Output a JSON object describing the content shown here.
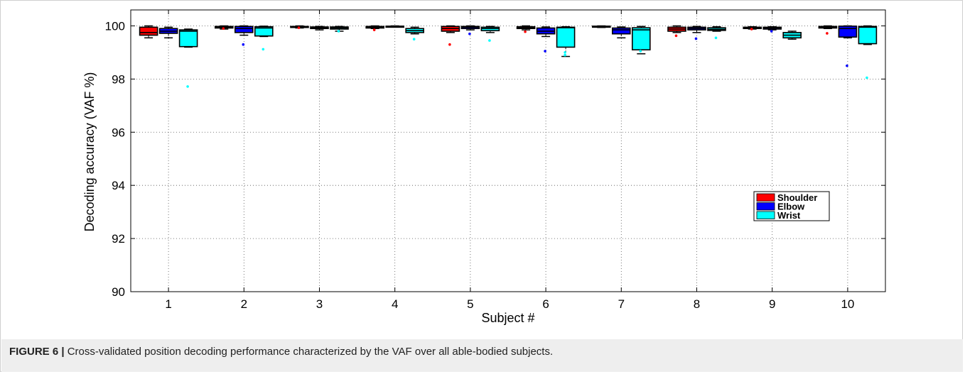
{
  "caption": {
    "label": "FIGURE 6 |",
    "text": " Cross-validated position decoding performance characterized by the VAF over all able-bodied subjects."
  },
  "chart_data": {
    "type": "box",
    "title": "",
    "xlabel": "Subject #",
    "ylabel": "Decoding accuracy (VAF %)",
    "ylim": [
      90,
      100.6
    ],
    "yticks": [
      90,
      92,
      94,
      96,
      98,
      100
    ],
    "categories": [
      "1",
      "2",
      "3",
      "4",
      "5",
      "6",
      "7",
      "8",
      "9",
      "10"
    ],
    "grid": true,
    "legend_position": "right",
    "series": [
      {
        "name": "Shoulder",
        "color": "#ff0000",
        "boxes": [
          {
            "min": 99.55,
            "q1": 99.65,
            "median": 99.75,
            "q3": 99.95,
            "max": 100.0,
            "outliers": []
          },
          {
            "min": 99.88,
            "q1": 99.92,
            "median": 99.95,
            "q3": 99.98,
            "max": 100.0,
            "outliers": [
              99.9
            ]
          },
          {
            "min": 99.92,
            "q1": 99.94,
            "median": 99.96,
            "q3": 99.98,
            "max": 100.0,
            "outliers": [
              99.93
            ]
          },
          {
            "min": 99.9,
            "q1": 99.92,
            "median": 99.95,
            "q3": 99.98,
            "max": 100.0,
            "outliers": [
              99.85
            ]
          },
          {
            "min": 99.75,
            "q1": 99.8,
            "median": 99.9,
            "q3": 99.98,
            "max": 100.0,
            "outliers": [
              99.3
            ]
          },
          {
            "min": 99.85,
            "q1": 99.9,
            "median": 99.93,
            "q3": 99.97,
            "max": 100.0,
            "outliers": [
              99.78
            ]
          },
          {
            "min": 99.94,
            "q1": 99.96,
            "median": 99.98,
            "q3": 99.99,
            "max": 100.0,
            "outliers": []
          },
          {
            "min": 99.75,
            "q1": 99.8,
            "median": 99.88,
            "q3": 99.95,
            "max": 100.0,
            "outliers": [
              99.63
            ]
          },
          {
            "min": 99.88,
            "q1": 99.9,
            "median": 99.93,
            "q3": 99.95,
            "max": 99.97,
            "outliers": [
              99.88
            ]
          },
          {
            "min": 99.9,
            "q1": 99.92,
            "median": 99.95,
            "q3": 99.98,
            "max": 100.0,
            "outliers": [
              99.72
            ]
          }
        ]
      },
      {
        "name": "Elbow",
        "color": "#0000ff",
        "boxes": [
          {
            "min": 99.55,
            "q1": 99.72,
            "median": 99.8,
            "q3": 99.9,
            "max": 99.95,
            "outliers": []
          },
          {
            "min": 99.65,
            "q1": 99.75,
            "median": 99.9,
            "q3": 99.98,
            "max": 100.0,
            "outliers": [
              99.3
            ]
          },
          {
            "min": 99.85,
            "q1": 99.9,
            "median": 99.93,
            "q3": 99.96,
            "max": 99.98,
            "outliers": []
          },
          {
            "min": 99.96,
            "q1": 99.97,
            "median": 99.98,
            "q3": 99.99,
            "max": 100.0,
            "outliers": []
          },
          {
            "min": 99.85,
            "q1": 99.9,
            "median": 99.95,
            "q3": 99.98,
            "max": 100.0,
            "outliers": [
              99.7
            ]
          },
          {
            "min": 99.6,
            "q1": 99.7,
            "median": 99.8,
            "q3": 99.92,
            "max": 99.96,
            "outliers": [
              99.05
            ]
          },
          {
            "min": 99.55,
            "q1": 99.7,
            "median": 99.85,
            "q3": 99.92,
            "max": 99.96,
            "outliers": []
          },
          {
            "min": 99.75,
            "q1": 99.85,
            "median": 99.9,
            "q3": 99.95,
            "max": 99.98,
            "outliers": [
              99.52
            ]
          },
          {
            "min": 99.85,
            "q1": 99.88,
            "median": 99.92,
            "q3": 99.95,
            "max": 99.97,
            "outliers": [
              99.8
            ]
          },
          {
            "min": 99.55,
            "q1": 99.58,
            "median": 99.9,
            "q3": 99.99,
            "max": 100.0,
            "outliers": [
              98.5
            ]
          }
        ]
      },
      {
        "name": "Wrist",
        "color": "#00ffff",
        "boxes": [
          {
            "min": 99.2,
            "q1": 99.22,
            "median": 99.8,
            "q3": 99.85,
            "max": 99.88,
            "outliers": [
              97.72
            ]
          },
          {
            "min": 99.6,
            "q1": 99.62,
            "median": 99.92,
            "q3": 99.97,
            "max": 99.99,
            "outliers": [
              99.12
            ]
          },
          {
            "min": 99.8,
            "q1": 99.88,
            "median": 99.92,
            "q3": 99.96,
            "max": 99.98,
            "outliers": [
              99.8
            ]
          },
          {
            "min": 99.7,
            "q1": 99.75,
            "median": 99.82,
            "q3": 99.9,
            "max": 99.95,
            "outliers": [
              99.5
            ]
          },
          {
            "min": 99.75,
            "q1": 99.82,
            "median": 99.9,
            "q3": 99.95,
            "max": 99.98,
            "outliers": [
              99.45
            ]
          },
          {
            "min": 98.85,
            "q1": 99.2,
            "median": 99.93,
            "q3": 99.95,
            "max": 99.97,
            "outliers": [
              99.0,
              98.9
            ]
          },
          {
            "min": 98.95,
            "q1": 99.1,
            "median": 99.85,
            "q3": 99.93,
            "max": 99.98,
            "outliers": [
              99.05
            ]
          },
          {
            "min": 99.8,
            "q1": 99.83,
            "median": 99.87,
            "q3": 99.93,
            "max": 99.97,
            "outliers": [
              99.55
            ]
          },
          {
            "min": 99.5,
            "q1": 99.55,
            "median": 99.65,
            "q3": 99.75,
            "max": 99.8,
            "outliers": []
          },
          {
            "min": 99.3,
            "q1": 99.33,
            "median": 99.95,
            "q3": 99.98,
            "max": 100.0,
            "outliers": [
              98.05
            ]
          }
        ]
      }
    ]
  }
}
